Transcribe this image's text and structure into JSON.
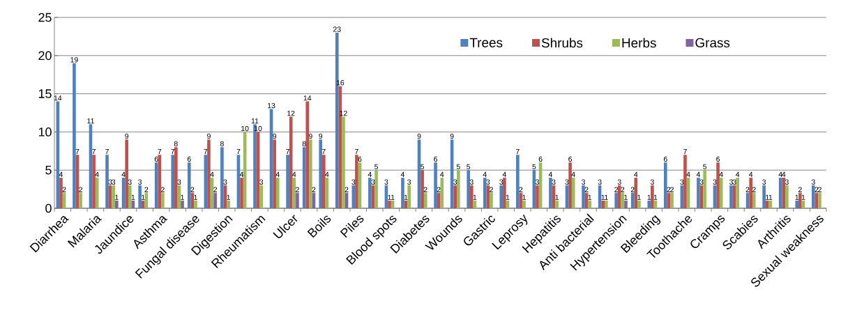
{
  "chart_data": {
    "type": "bar",
    "categories": [
      "Diarrhea",
      null,
      "Malaria",
      null,
      "Jaundice",
      null,
      "Asthma",
      null,
      "Fungal disease",
      null,
      "Digestion",
      null,
      "Rheumatism",
      null,
      "Ulcer",
      null,
      "Boils",
      null,
      "Piles",
      null,
      "Blood spots",
      null,
      "Diabetes",
      null,
      "Wounds",
      null,
      "Gastric",
      null,
      "Leprosy",
      null,
      "Hepatitis",
      null,
      "Anti bacterial",
      null,
      "Hypertension",
      null,
      "Bleeding",
      null,
      "Toothache",
      null,
      "Cramps",
      null,
      "Scabies",
      null,
      "Arthritis",
      null,
      "Sexual weakness"
    ],
    "series": [
      {
        "name": "Trees",
        "color": "#4f81bd",
        "values": [
          14,
          19,
          11,
          7,
          4,
          3,
          6,
          7,
          6,
          7,
          8,
          7,
          11,
          13,
          7,
          8,
          9,
          23,
          3,
          4,
          3,
          4,
          9,
          6,
          9,
          5,
          4,
          3,
          7,
          5,
          4,
          3,
          3,
          3,
          2,
          2,
          1,
          6,
          3,
          4,
          3,
          3,
          2,
          3,
          4,
          1,
          3
        ]
      },
      {
        "name": "Shrubs",
        "color": "#c0504d",
        "values": [
          4,
          7,
          7,
          3,
          9,
          1,
          7,
          8,
          2,
          9,
          3,
          4,
          10,
          9,
          12,
          14,
          7,
          16,
          7,
          3,
          1,
          1,
          5,
          2,
          3,
          3,
          3,
          4,
          2,
          3,
          3,
          6,
          2,
          1,
          3,
          4,
          3,
          2,
          7,
          3,
          6,
          3,
          4,
          1,
          4,
          2,
          2
        ]
      },
      {
        "name": "Herbs",
        "color": "#9bbb59",
        "values": [
          2,
          2,
          4,
          3,
          3,
          2,
          2,
          3,
          1,
          4,
          1,
          10,
          3,
          4,
          4,
          9,
          4,
          12,
          6,
          5,
          1,
          3,
          2,
          4,
          5,
          1,
          2,
          1,
          1,
          6,
          1,
          4,
          1,
          1,
          2,
          1,
          1,
          2,
          4,
          5,
          4,
          4,
          2,
          1,
          3,
          1,
          2
        ]
      },
      {
        "name": "Grass",
        "color": "#8064a2",
        "values": [
          null,
          null,
          null,
          1,
          1,
          null,
          null,
          1,
          null,
          2,
          null,
          null,
          null,
          null,
          2,
          2,
          null,
          2,
          null,
          null,
          null,
          null,
          null,
          null,
          null,
          null,
          null,
          null,
          null,
          null,
          null,
          null,
          null,
          null,
          1,
          null,
          null,
          null,
          null,
          null,
          null,
          null,
          null,
          null,
          null,
          null,
          null
        ]
      }
    ],
    "ylim": [
      0,
      25
    ],
    "yticks": [
      0,
      5,
      10,
      15,
      20,
      25
    ],
    "grid": "y",
    "legend": "top right",
    "data_labels": true
  }
}
